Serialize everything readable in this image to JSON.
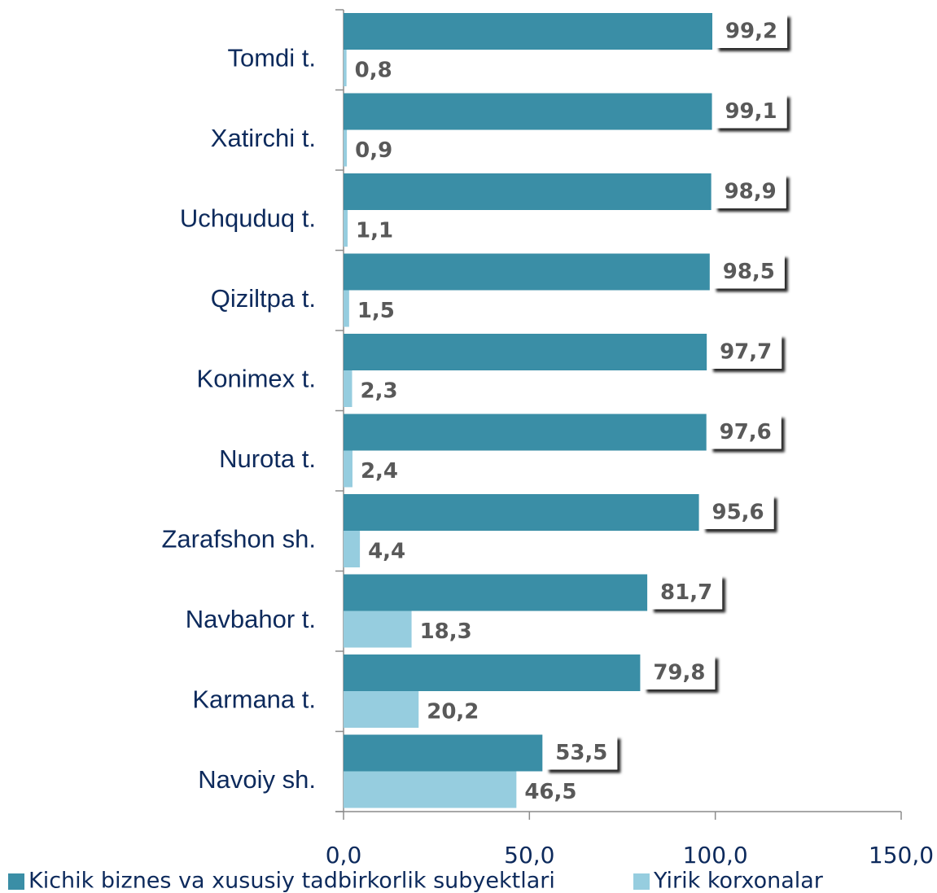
{
  "chart_data": {
    "type": "bar",
    "orientation": "horizontal",
    "categories": [
      "Tomdi t.",
      "Xatirchi t.",
      "Uchquduq t.",
      "Qiziltpa t.",
      "Konimex t.",
      "Nurota t.",
      "Zarafshon sh.",
      "Navbahor t.",
      "Karmana t.",
      "Navoiy sh."
    ],
    "series": [
      {
        "name": "Kichik biznes va xususiy tadbirkorlik subyektlari",
        "color": "#3a8ea6",
        "values": [
          99.2,
          99.1,
          98.9,
          98.5,
          97.7,
          97.6,
          95.6,
          81.7,
          79.8,
          53.5
        ],
        "value_labels": [
          "99,2",
          "99,1",
          "98,9",
          "98,5",
          "97,7",
          "97,6",
          "95,6",
          "81,7",
          "79,8",
          "53,5"
        ]
      },
      {
        "name": "Yirik korxonalar",
        "color": "#96cddf",
        "values": [
          0.8,
          0.9,
          1.1,
          1.5,
          2.3,
          2.4,
          4.4,
          18.3,
          20.2,
          46.5
        ],
        "value_labels": [
          "0,8",
          "0,9",
          "1,1",
          "1,5",
          "2,3",
          "2,4",
          "4,4",
          "18,3",
          "20,2",
          "46,5"
        ]
      }
    ],
    "xlim": [
      0,
      150
    ],
    "xticks": [
      {
        "value": 0,
        "label": "0,0"
      },
      {
        "value": 50,
        "label": "50,0"
      },
      {
        "value": 100,
        "label": "100,0"
      },
      {
        "value": 150,
        "label": "150,0"
      }
    ],
    "legend": "bottom"
  }
}
